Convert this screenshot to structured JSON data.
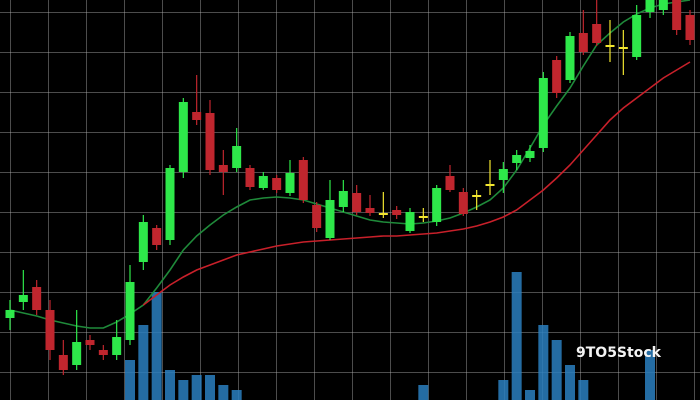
{
  "chart_data": {
    "type": "candlestick",
    "ylim": [
      0,
      400
    ],
    "volume_ylim": [
      0,
      400
    ],
    "up_color": "#2ee84a",
    "down_color": "#c0262e",
    "doji_color": "#f2e630",
    "volume_color": "#2a7fc0",
    "grid": true,
    "watermark": "9TO5Stock",
    "candles": [
      {
        "open": 82,
        "high": 100,
        "low": 70,
        "close": 90
      },
      {
        "open": 98,
        "high": 130,
        "low": 90,
        "close": 105
      },
      {
        "open": 113,
        "high": 120,
        "low": 85,
        "close": 90
      },
      {
        "open": 90,
        "high": 100,
        "low": 40,
        "close": 50
      },
      {
        "open": 45,
        "high": 60,
        "low": 25,
        "close": 30
      },
      {
        "open": 35,
        "high": 90,
        "low": 30,
        "close": 58
      },
      {
        "open": 60,
        "high": 65,
        "low": 50,
        "close": 55
      },
      {
        "open": 50,
        "high": 55,
        "low": 40,
        "close": 45
      },
      {
        "open": 45,
        "high": 80,
        "low": 40,
        "close": 63
      },
      {
        "open": 60,
        "high": 135,
        "low": 55,
        "close": 118
      },
      {
        "open": 138,
        "high": 185,
        "low": 130,
        "close": 178
      },
      {
        "open": 172,
        "high": 175,
        "low": 150,
        "close": 155
      },
      {
        "open": 160,
        "high": 235,
        "low": 155,
        "close": 232
      },
      {
        "open": 228,
        "high": 302,
        "low": 222,
        "close": 298
      },
      {
        "open": 288,
        "high": 325,
        "low": 275,
        "close": 280
      },
      {
        "open": 287,
        "high": 300,
        "low": 225,
        "close": 230
      },
      {
        "open": 235,
        "high": 250,
        "low": 205,
        "close": 228
      },
      {
        "open": 232,
        "high": 272,
        "low": 228,
        "close": 254
      },
      {
        "open": 232,
        "high": 235,
        "low": 210,
        "close": 213
      },
      {
        "open": 212,
        "high": 228,
        "low": 210,
        "close": 224
      },
      {
        "open": 222,
        "high": 225,
        "low": 207,
        "close": 210
      },
      {
        "open": 207,
        "high": 240,
        "low": 204,
        "close": 227
      },
      {
        "open": 240,
        "high": 243,
        "low": 197,
        "close": 200
      },
      {
        "open": 195,
        "high": 198,
        "low": 168,
        "close": 172
      },
      {
        "open": 162,
        "high": 220,
        "low": 160,
        "close": 200
      },
      {
        "open": 193,
        "high": 220,
        "low": 188,
        "close": 209
      },
      {
        "open": 207,
        "high": 215,
        "low": 185,
        "close": 188
      },
      {
        "open": 192,
        "high": 205,
        "low": 184,
        "close": 187
      },
      {
        "open": 187,
        "high": 208,
        "low": 182,
        "close": 187
      },
      {
        "open": 190,
        "high": 194,
        "low": 181,
        "close": 185
      },
      {
        "open": 169,
        "high": 192,
        "low": 167,
        "close": 188
      },
      {
        "open": 184,
        "high": 192,
        "low": 178,
        "close": 184
      },
      {
        "open": 178,
        "high": 215,
        "low": 174,
        "close": 212
      },
      {
        "open": 224,
        "high": 235,
        "low": 208,
        "close": 210
      },
      {
        "open": 208,
        "high": 212,
        "low": 184,
        "close": 186
      },
      {
        "open": 205,
        "high": 210,
        "low": 190,
        "close": 205
      },
      {
        "open": 216,
        "high": 240,
        "low": 205,
        "close": 216
      },
      {
        "open": 220,
        "high": 238,
        "low": 207,
        "close": 231
      },
      {
        "open": 237,
        "high": 250,
        "low": 230,
        "close": 245
      },
      {
        "open": 242,
        "high": 255,
        "low": 238,
        "close": 249
      },
      {
        "open": 252,
        "high": 328,
        "low": 248,
        "close": 322
      },
      {
        "open": 340,
        "high": 344,
        "low": 302,
        "close": 307
      },
      {
        "open": 320,
        "high": 368,
        "low": 317,
        "close": 364
      },
      {
        "open": 367,
        "high": 390,
        "low": 345,
        "close": 348
      },
      {
        "open": 376,
        "high": 400,
        "low": 354,
        "close": 357
      },
      {
        "open": 355,
        "high": 380,
        "low": 338,
        "close": 355
      },
      {
        "open": 353,
        "high": 370,
        "low": 325,
        "close": 353
      },
      {
        "open": 343,
        "high": 395,
        "low": 340,
        "close": 385
      },
      {
        "open": 388,
        "high": 400,
        "low": 382,
        "close": 400
      },
      {
        "open": 390,
        "high": 400,
        "low": 385,
        "close": 400
      },
      {
        "open": 400,
        "high": 400,
        "low": 365,
        "close": 370
      },
      {
        "open": 385,
        "high": 390,
        "low": 355,
        "close": 360
      }
    ],
    "volume": [
      0,
      0,
      0,
      0,
      0,
      0,
      0,
      0,
      0,
      40,
      75,
      108,
      30,
      20,
      25,
      25,
      15,
      10,
      0,
      0,
      0,
      0,
      0,
      0,
      0,
      0,
      0,
      0,
      0,
      0,
      0,
      15,
      0,
      0,
      0,
      0,
      0,
      20,
      128,
      10,
      75,
      60,
      35,
      20,
      0,
      0,
      0,
      0,
      50,
      0,
      0,
      0
    ],
    "series": [
      {
        "color": "#1f8a3a",
        "values": [
          90,
          87,
          84,
          80,
          77,
          74,
          72,
          72,
          78,
          86,
          95,
          112,
          130,
          150,
          164,
          175,
          185,
          193,
          200,
          202,
          203,
          202,
          200,
          196,
          192,
          188,
          184,
          180,
          178,
          177,
          176,
          177,
          179,
          182,
          187,
          193,
          200,
          212,
          230,
          252,
          275,
          294,
          312,
          334,
          355,
          367,
          378,
          386,
          392,
          396,
          398,
          400
        ]
      },
      {
        "color": "#c8202a",
        "values": [
          null,
          null,
          null,
          null,
          null,
          null,
          null,
          null,
          null,
          null,
          95,
          105,
          115,
          123,
          130,
          135,
          140,
          145,
          148,
          151,
          154,
          156,
          158,
          159,
          160,
          161,
          162,
          163,
          164,
          164,
          165,
          166,
          167,
          169,
          171,
          174,
          178,
          183,
          190,
          200,
          210,
          222,
          235,
          250,
          265,
          280,
          292,
          302,
          312,
          322,
          330,
          338
        ]
      }
    ]
  }
}
